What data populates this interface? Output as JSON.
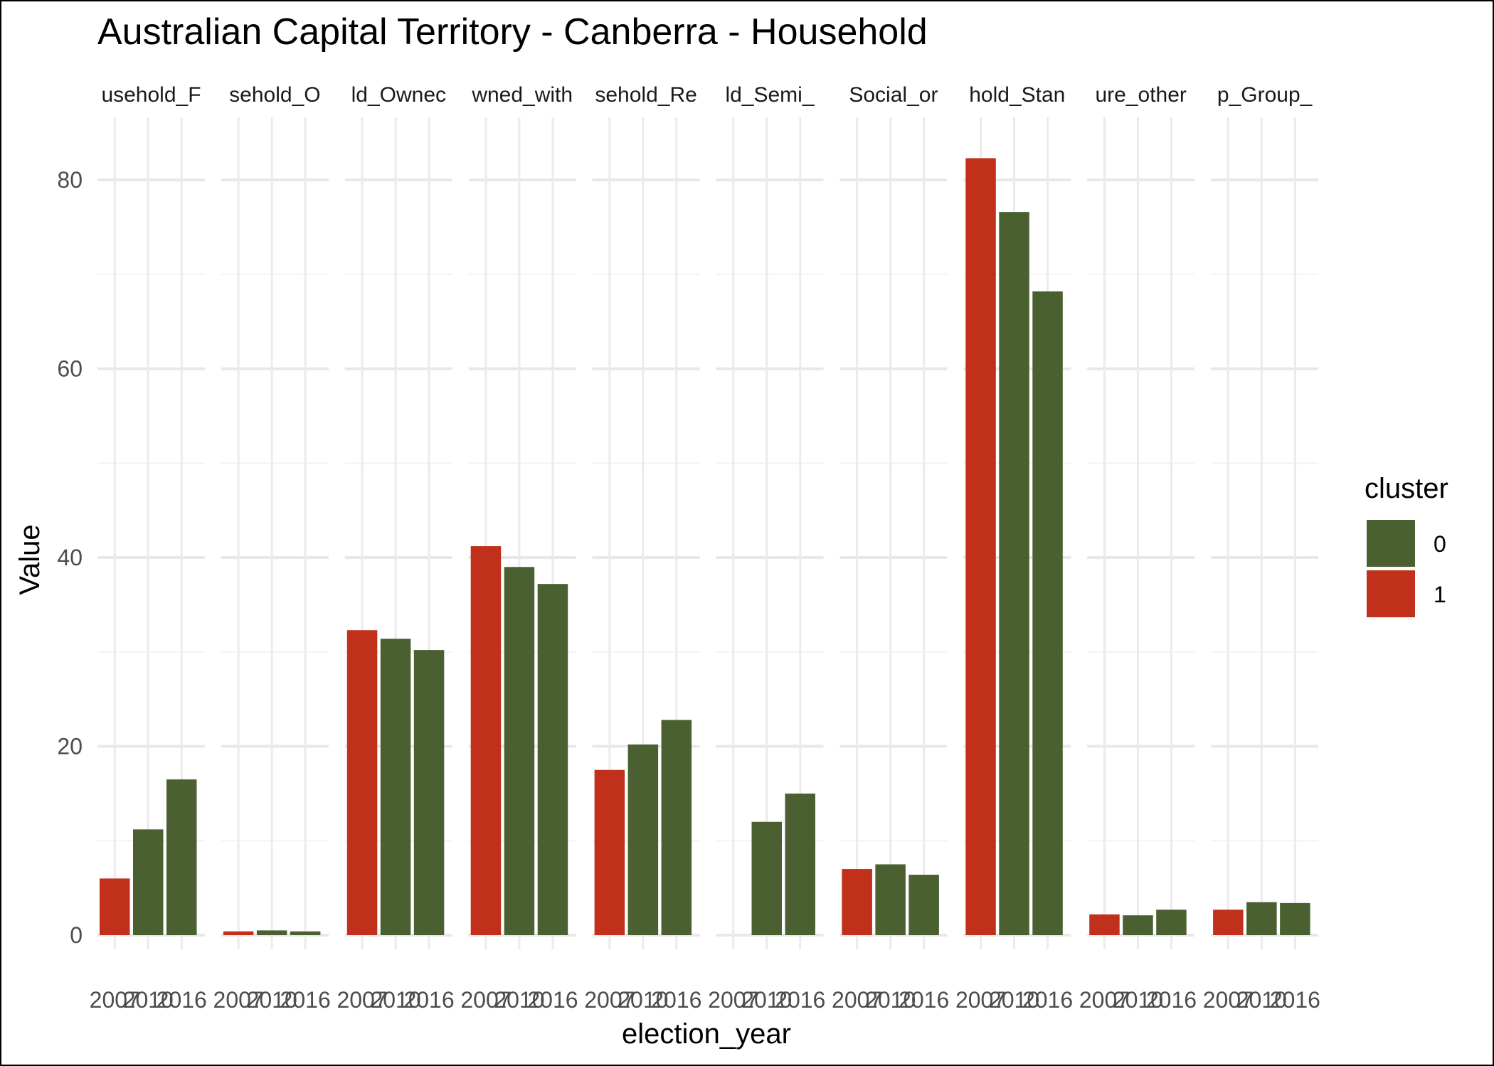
{
  "chart_data": {
    "type": "bar",
    "title": "Australian Capital Territory - Canberra - Household",
    "xlabel": "election_year",
    "ylabel": "Value",
    "ylim": [
      0,
      86
    ],
    "yticks": [
      0,
      20,
      40,
      60,
      80
    ],
    "grid": true,
    "legend": {
      "title": "cluster",
      "position": "right",
      "entries": [
        {
          "label": "0",
          "color": "#4a6031"
        },
        {
          "label": "1",
          "color": "#c0301a"
        }
      ]
    },
    "facet_strip_labels": [
      "usehold_F",
      "sehold_O",
      "ld_Ownec",
      "wned_with",
      "sehold_Re",
      "ld_Semi_",
      "Social_or",
      "hold_Stan",
      "ure_other",
      "p_Group_"
    ],
    "x_tick_labels": [
      "2007",
      "2010",
      "2016"
    ],
    "facets": [
      {
        "years": [
          2007,
          2010,
          2016
        ],
        "values": [
          6.0,
          11.2,
          16.5
        ],
        "cluster": [
          "1",
          "0",
          "0"
        ]
      },
      {
        "years": [
          2007,
          2010,
          2016
        ],
        "values": [
          0.4,
          0.5,
          0.4
        ],
        "cluster": [
          "1",
          "0",
          "0"
        ]
      },
      {
        "years": [
          2007,
          2010,
          2016
        ],
        "values": [
          32.3,
          31.4,
          30.2
        ],
        "cluster": [
          "1",
          "0",
          "0"
        ]
      },
      {
        "years": [
          2007,
          2010,
          2016
        ],
        "values": [
          41.2,
          39.0,
          37.2
        ],
        "cluster": [
          "1",
          "0",
          "0"
        ]
      },
      {
        "years": [
          2007,
          2010,
          2016
        ],
        "values": [
          17.5,
          20.2,
          22.8
        ],
        "cluster": [
          "1",
          "0",
          "0"
        ]
      },
      {
        "years": [
          2007,
          2010,
          2016
        ],
        "values": [
          null,
          12.0,
          15.0
        ],
        "cluster": [
          "1",
          "0",
          "0"
        ]
      },
      {
        "years": [
          2007,
          2010,
          2016
        ],
        "values": [
          7.0,
          7.5,
          6.4
        ],
        "cluster": [
          "1",
          "0",
          "0"
        ]
      },
      {
        "years": [
          2007,
          2010,
          2016
        ],
        "values": [
          82.3,
          76.6,
          68.2
        ],
        "cluster": [
          "1",
          "0",
          "0"
        ]
      },
      {
        "years": [
          2007,
          2010,
          2016
        ],
        "values": [
          2.2,
          2.1,
          2.7
        ],
        "cluster": [
          "1",
          "0",
          "0"
        ]
      },
      {
        "years": [
          2007,
          2010,
          2016
        ],
        "values": [
          2.7,
          3.5,
          3.4
        ],
        "cluster": [
          "1",
          "0",
          "0"
        ]
      }
    ]
  }
}
